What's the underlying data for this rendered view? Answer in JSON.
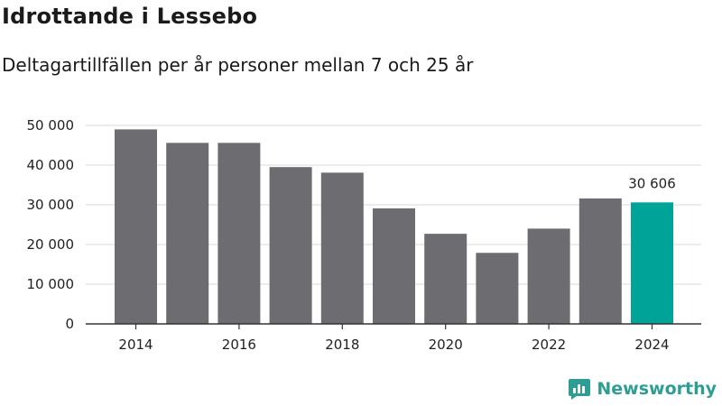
{
  "title": "Idrottande i Lessebo",
  "subtitle": "Deltagartillfällen per år personer mellan 7 och 25 år",
  "brand": "Newsworthy",
  "colors": {
    "bar": "#6d6c71",
    "highlight": "#00a398",
    "grid": "#d9d9d9",
    "axis": "#333333",
    "brand": "#2e9e94"
  },
  "chart_data": {
    "type": "bar",
    "title": "Idrottande i Lessebo",
    "subtitle": "Deltagartillfällen per år personer mellan 7 och 25 år",
    "xlabel": "",
    "ylabel": "",
    "categories": [
      "2014",
      "2015",
      "2016",
      "2017",
      "2018",
      "2019",
      "2020",
      "2021",
      "2022",
      "2023",
      "2024"
    ],
    "values": [
      49000,
      45600,
      45600,
      39500,
      38100,
      29100,
      22700,
      17900,
      24000,
      31600,
      30606
    ],
    "highlight_index": 10,
    "data_labels": [
      {
        "index": 10,
        "text": "30 606"
      }
    ],
    "x_tick_labels": [
      "2014",
      "",
      "2016",
      "",
      "2018",
      "",
      "2020",
      "",
      "2022",
      "",
      "2024"
    ],
    "y_ticks": [
      0,
      10000,
      20000,
      30000,
      40000,
      50000
    ],
    "y_tick_labels": [
      "0",
      "10 000",
      "20 000",
      "30 000",
      "40 000",
      "50 000"
    ],
    "ylim": [
      0,
      50000
    ],
    "grid": true
  }
}
